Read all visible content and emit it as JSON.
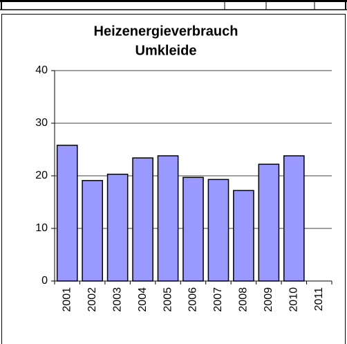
{
  "chart_data": {
    "type": "bar",
    "title": [
      "Heizenergieverbrauch",
      "Umkleide"
    ],
    "categories": [
      "2001",
      "2002",
      "2003",
      "2004",
      "2005",
      "2006",
      "2007",
      "2008",
      "2009",
      "2010",
      "2011"
    ],
    "values": [
      25.8,
      19.1,
      20.3,
      23.4,
      23.8,
      19.7,
      19.3,
      17.2,
      22.2,
      23.8,
      null
    ],
    "color": "#9999ff",
    "ylim": [
      0,
      40
    ],
    "yticks": [
      0,
      10,
      20,
      30,
      40
    ],
    "grid": true
  }
}
